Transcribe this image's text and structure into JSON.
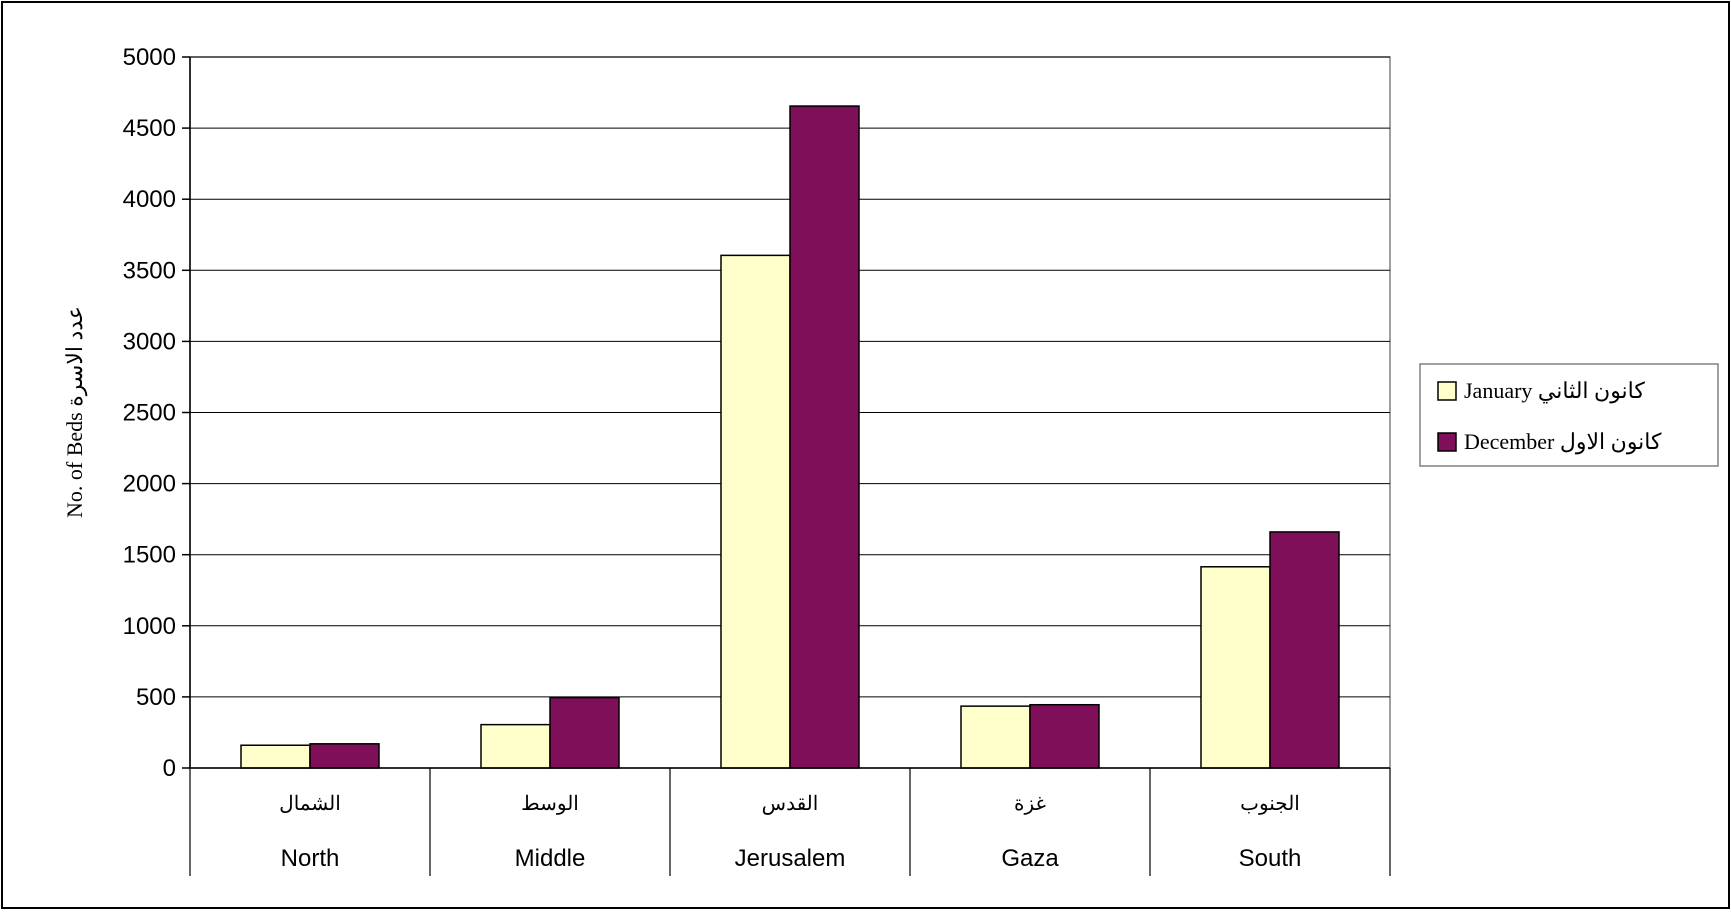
{
  "chart_data": {
    "type": "bar",
    "categories": [
      {
        "ar": "الشمال",
        "en": "North"
      },
      {
        "ar": "الوسط",
        "en": "Middle"
      },
      {
        "ar": "القدس",
        "en": "Jerusalem"
      },
      {
        "ar": "غزة",
        "en": "Gaza"
      },
      {
        "ar": "الجنوب",
        "en": "South"
      }
    ],
    "series": [
      {
        "name": "كانون الثاني January",
        "color": "#FFFFCC",
        "values": [
          160,
          305,
          3605,
          435,
          1415
        ]
      },
      {
        "name": "كانون الاول December",
        "color": "#800F5A",
        "values": [
          170,
          495,
          4655,
          445,
          1660
        ]
      }
    ],
    "ylabel": "No. of Beds  عدد الاسرة",
    "ylim": [
      0,
      5000
    ],
    "yticks": [
      0,
      500,
      1000,
      1500,
      2000,
      2500,
      3000,
      3500,
      4000,
      4500,
      5000
    ],
    "grid": true,
    "legend_position": "right"
  }
}
